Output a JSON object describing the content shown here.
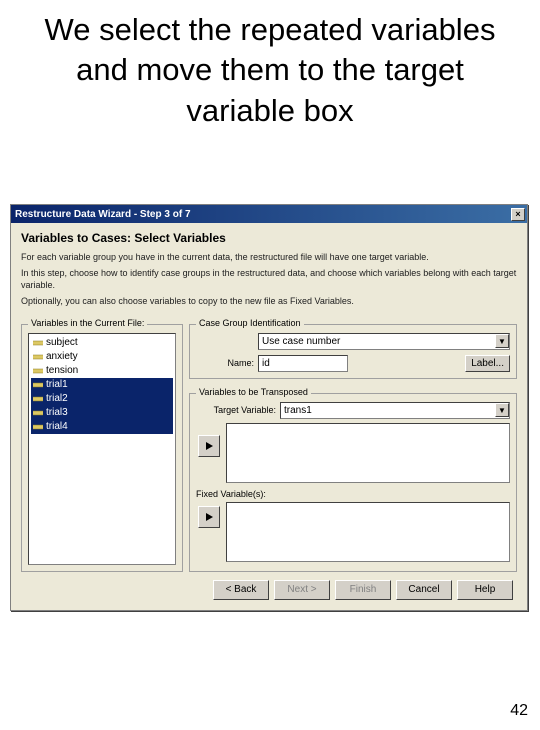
{
  "slide": {
    "title": "We select the repeated variables and move them to the target variable box",
    "number": "42"
  },
  "dialog": {
    "title": "Restructure Data Wizard - Step 3 of 7",
    "section_title": "Variables to Cases: Select Variables",
    "intro1": "For each variable group you have in the current data, the restructured file will have one target variable.",
    "intro2": "In this step, choose how to identify case groups in the restructured data, and choose which variables belong with each target variable.",
    "intro3": "Optionally, you can also choose variables to copy to the new file as Fixed Variables.",
    "current_vars_legend": "Variables in the Current File:",
    "vars": [
      {
        "name": "subject",
        "type": "scale",
        "sel": false
      },
      {
        "name": "anxiety",
        "type": "scale",
        "sel": false
      },
      {
        "name": "tension",
        "type": "scale",
        "sel": false
      },
      {
        "name": "trial1",
        "type": "scale",
        "sel": true
      },
      {
        "name": "trial2",
        "type": "scale",
        "sel": true
      },
      {
        "name": "trial3",
        "type": "scale",
        "sel": true
      },
      {
        "name": "trial4",
        "type": "scale",
        "sel": true
      }
    ],
    "case_group_legend": "Case Group Identification",
    "case_group_combo": "Use case number",
    "name_label": "Name:",
    "name_value": "id",
    "label_btn": "Label...",
    "transposed_legend": "Variables to be Transposed",
    "target_label": "Target Variable:",
    "target_combo": "trans1",
    "fixed_label": "Fixed Variable(s):",
    "buttons": {
      "back": "< Back",
      "next": "Next >",
      "finish": "Finish",
      "cancel": "Cancel",
      "help": "Help"
    }
  },
  "colors": {
    "dialog_bg": "#ece9d8",
    "titlebar_start": "#0a246a",
    "titlebar_end": "#3b6ea5",
    "selection": "#0a246a"
  }
}
